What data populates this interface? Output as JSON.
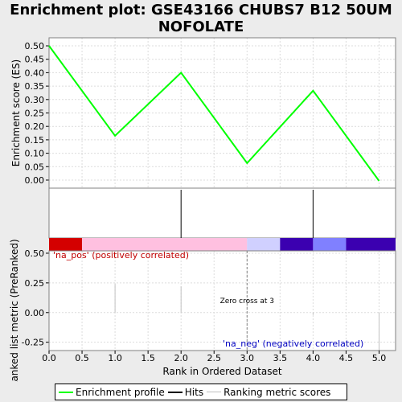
{
  "title_line1": "Enrichment plot: GSE43166 CHUBS7 B12 50UM",
  "title_line2": "NOFOLATE",
  "chart_data": {
    "type": "line",
    "upper": {
      "ylabel": "Enrichment score (ES)",
      "ylim": [
        -0.03,
        0.53
      ],
      "yticks": [
        "0.50",
        "0.45",
        "0.40",
        "0.35",
        "0.30",
        "0.25",
        "0.20",
        "0.15",
        "0.10",
        "0.05",
        "0.00"
      ],
      "ytick_values": [
        0.5,
        0.45,
        0.4,
        0.35,
        0.3,
        0.25,
        0.2,
        0.15,
        0.1,
        0.05,
        0.0
      ],
      "series": [
        {
          "name": "Enrichment profile",
          "color": "#00ff00",
          "x": [
            0,
            1,
            2,
            3,
            4,
            5
          ],
          "y": [
            0.5,
            0.165,
            0.4,
            0.063,
            0.333,
            -0.003
          ]
        }
      ],
      "grid": true
    },
    "hits": {
      "x": [
        2,
        4
      ],
      "color": "#000000"
    },
    "color_bar": {
      "segments": [
        {
          "from": 0.0,
          "to": 0.5,
          "color": "#d40000"
        },
        {
          "from": 0.5,
          "to": 3.0,
          "color": "#ffc0e0"
        },
        {
          "from": 3.0,
          "to": 3.5,
          "color": "#d0d0ff"
        },
        {
          "from": 3.5,
          "to": 4.0,
          "color": "#3b00b0"
        },
        {
          "from": 4.0,
          "to": 4.5,
          "color": "#8080ff"
        },
        {
          "from": 4.5,
          "to": 5.25,
          "color": "#3b00b0"
        }
      ]
    },
    "lower": {
      "ylabel": "Ranked list metric (PreRanked)",
      "ylim": [
        -0.32,
        0.52
      ],
      "yticks": [
        "0.50",
        "0.25",
        "0.00",
        "-0.25"
      ],
      "ytick_values": [
        0.5,
        0.25,
        0.0,
        -0.25
      ],
      "metric_bars": [
        {
          "x": 1,
          "y": 0.24
        },
        {
          "x": 2,
          "y": 0.22
        },
        {
          "x": 4,
          "y": -0.02
        },
        {
          "x": 5,
          "y": -0.32
        }
      ],
      "zero_cross_x": 3,
      "zero_cross_label": "Zero cross at 3",
      "pos_label": "'na_pos' (positively correlated)",
      "neg_label": "'na_neg' (negatively correlated)",
      "pos_color": "#c00000",
      "neg_color": "#0000c0"
    },
    "xlabel": "Rank in Ordered Dataset",
    "xlim": [
      0,
      5.25
    ],
    "xticks": [
      "0.0",
      "0.5",
      "1.0",
      "1.5",
      "2.0",
      "2.5",
      "3.0",
      "3.5",
      "4.0",
      "4.5",
      "5.0"
    ],
    "xtick_values": [
      0,
      0.5,
      1,
      1.5,
      2,
      2.5,
      3,
      3.5,
      4,
      4.5,
      5
    ]
  },
  "legend": {
    "items": [
      {
        "label": "Enrichment profile",
        "color": "#00ff00"
      },
      {
        "label": "Hits",
        "color": "#000000"
      },
      {
        "label": "Ranking metric scores",
        "color": "#c0c0c0"
      }
    ]
  }
}
